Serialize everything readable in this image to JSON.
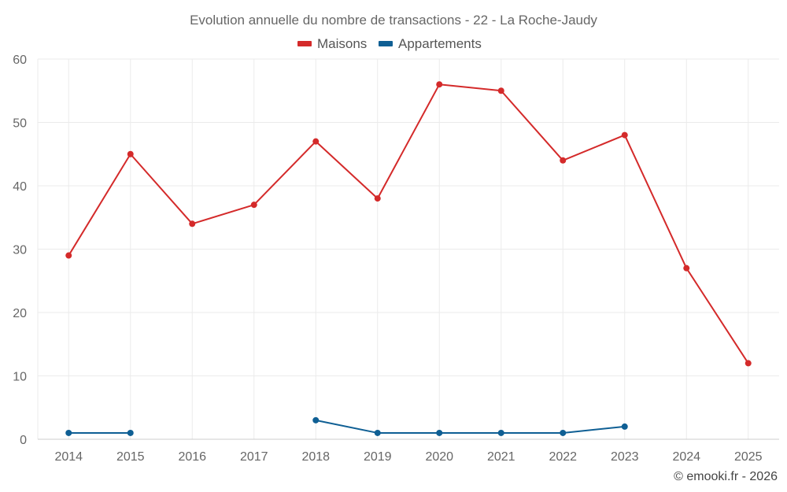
{
  "chart_data": {
    "type": "line",
    "title": "Evolution annuelle du nombre de transactions - 22 - La Roche-Jaudy",
    "categories": [
      "2014",
      "2015",
      "2016",
      "2017",
      "2018",
      "2019",
      "2020",
      "2021",
      "2022",
      "2023",
      "2024",
      "2025"
    ],
    "series": [
      {
        "name": "Maisons",
        "color": "#d42a2a",
        "values": [
          29,
          45,
          34,
          37,
          47,
          38,
          56,
          55,
          44,
          48,
          27,
          12
        ]
      },
      {
        "name": "Appartements",
        "color": "#0f5f94",
        "values": [
          1,
          1,
          null,
          null,
          3,
          1,
          1,
          1,
          1,
          2,
          null,
          null
        ]
      }
    ],
    "xlabel": "",
    "ylabel": "",
    "ylim": [
      0,
      60
    ],
    "yticks": [
      "0",
      "10",
      "20",
      "30",
      "40",
      "50",
      "60"
    ],
    "grid": true,
    "legend_position": "top-center",
    "credit": "© emooki.fr - 2026"
  }
}
